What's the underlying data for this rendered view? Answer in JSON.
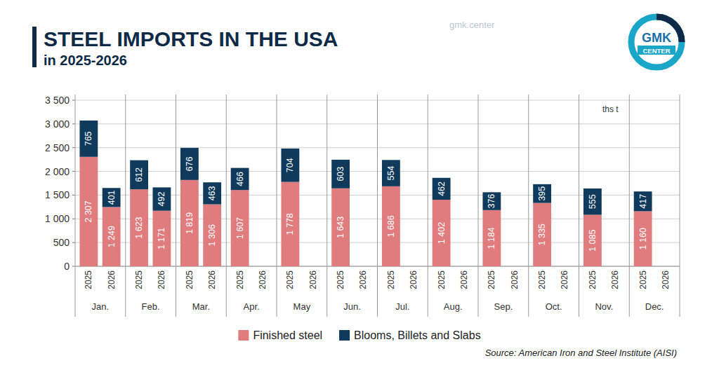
{
  "chart_data": {
    "type": "bar",
    "title": "STEEL IMPORTS IN THE USA",
    "subtitle": "in 2025-2026",
    "unit": "ths t",
    "source": "Source: American Iron and Steel Institute (AISI)",
    "logo": [
      "GMK",
      "CENTER"
    ],
    "watermark": "gmk.center",
    "categories": [
      "2025",
      "2026",
      "2025",
      "2026",
      "2025",
      "2026",
      "2025",
      "2026",
      "2025",
      "2026",
      "2025",
      "2026",
      "2025",
      "2026",
      "2025",
      "2026",
      "2025",
      "2026",
      "2025",
      "2026",
      "2025",
      "2026",
      "2025",
      "2026"
    ],
    "groups": [
      "Jan.",
      "Feb.",
      "Mar.",
      "Apr.",
      "May",
      "Jun.",
      "Jul.",
      "Aug.",
      "Sep.",
      "Oct.",
      "Nov.",
      "Dec."
    ],
    "series": [
      {
        "name": "Finished steel",
        "color": "#e07b7e",
        "values": [
          2307,
          1249,
          1623,
          1171,
          1819,
          1306,
          1607,
          null,
          1778,
          null,
          1643,
          null,
          1686,
          null,
          1402,
          null,
          1184,
          null,
          1335,
          null,
          1085,
          null,
          1160,
          null
        ],
        "value_labels": [
          "2 307",
          "1 249",
          "1 623",
          "1 171",
          "1 819",
          "1 306",
          "1 607",
          null,
          "1 778",
          null,
          "1 643",
          null,
          "1 686",
          null,
          "1 402",
          null,
          "1 184",
          null,
          "1 335",
          null,
          "1 085",
          null,
          "1 160",
          null
        ]
      },
      {
        "name": "Blooms, Billets and Slabs",
        "color": "#0f3a5c",
        "values": [
          765,
          401,
          612,
          492,
          676,
          463,
          466,
          null,
          704,
          null,
          603,
          null,
          554,
          null,
          462,
          null,
          376,
          null,
          395,
          null,
          555,
          null,
          417,
          null
        ],
        "value_labels": [
          "765",
          "401",
          "612",
          "492",
          "676",
          "463",
          "466",
          null,
          "704",
          null,
          "603",
          null,
          "554",
          null,
          "462",
          null,
          "376",
          null,
          "395",
          null,
          "555",
          null,
          "417",
          null
        ]
      }
    ],
    "ylim": [
      0,
      3500
    ],
    "yticks": [
      0,
      500,
      {
        "value": 1000,
        "label": "1 000"
      },
      {
        "value": 1500,
        "label": "1 500"
      },
      {
        "value": 2000,
        "label": "2 000"
      },
      {
        "value": 2500,
        "label": "2 500"
      },
      {
        "value": 3000,
        "label": "3 000"
      },
      {
        "value": 3500,
        "label": "3 500"
      }
    ],
    "grid": true,
    "stacked": true,
    "data_labels": true,
    "legend": "bottom"
  }
}
